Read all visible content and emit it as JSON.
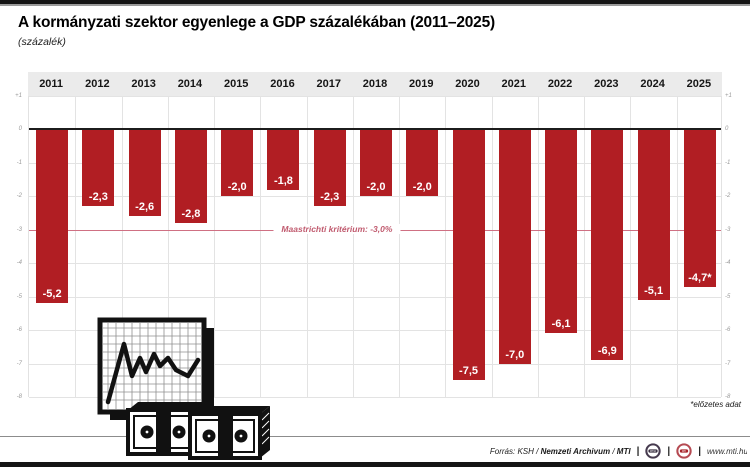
{
  "title": "A kormányzati szektor egyenlege a GDP százalékában (2011–2025)",
  "subtitle": "(százalék)",
  "footnote": "*előzetes adat",
  "maastricht_label": "Maastrichti kritérium: -3,0%",
  "axis_ticks": [
    "+1",
    "0",
    "-1",
    "-2",
    "-3",
    "-4",
    "-5",
    "-6",
    "-7",
    "-8"
  ],
  "footer": {
    "source_prefix": "Forrás: KSH /",
    "source_bold1": "Nemzeti Archivum",
    "source_sep": "/",
    "source_bold2": "MTI",
    "separator": "|",
    "logo1": "MTVA",
    "logo2": "MTI",
    "website": "www.mti.hu"
  },
  "colors": {
    "bar": "#b11e23",
    "maastricht_line": "#cf7083",
    "maastricht_text": "#c05a6e",
    "year_band": "#ebebeb",
    "grid": "#e3e3e3",
    "zero_line": "#1c1c1c"
  },
  "chart_data": {
    "type": "bar",
    "title": "A kormányzati szektor egyenlege a GDP százalékában (2011–2025)",
    "ylabel": "százalék",
    "xlabel": "",
    "ylim": [
      -8,
      1
    ],
    "grid": true,
    "categories": [
      "2011",
      "2012",
      "2013",
      "2014",
      "2015",
      "2016",
      "2017",
      "2018",
      "2019",
      "2020",
      "2021",
      "2022",
      "2023",
      "2024",
      "2025"
    ],
    "values": [
      -5.2,
      -2.3,
      -2.6,
      -2.8,
      -2.0,
      -1.8,
      -2.3,
      -2.0,
      -2.0,
      -7.5,
      -7.0,
      -6.1,
      -6.9,
      -5.1,
      -4.7
    ],
    "value_labels": [
      "-5,2",
      "-2,3",
      "-2,6",
      "-2,8",
      "-2,0",
      "-1,8",
      "-2,3",
      "-2,0",
      "-2,0",
      "-7,5",
      "-7,0",
      "-6,1",
      "-6,9",
      "-5,1",
      "-4,7*"
    ],
    "annotations": [
      {
        "y": -3.0,
        "label": "Maastrichti kritérium: -3,0%"
      }
    ],
    "note": "*előzetes adat"
  }
}
